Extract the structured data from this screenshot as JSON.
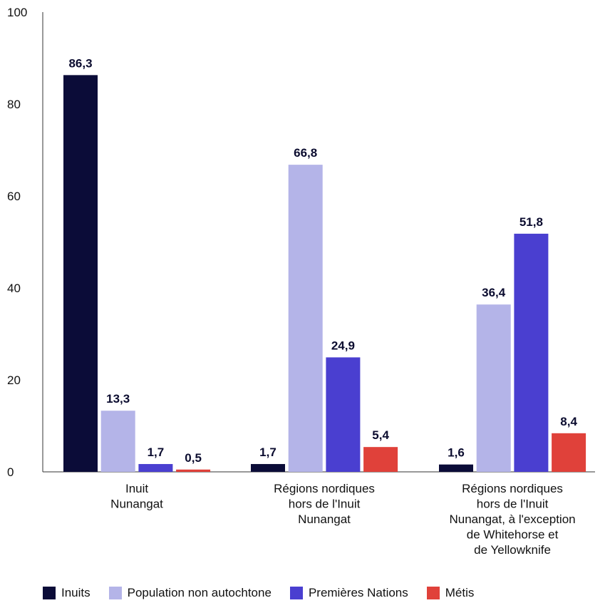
{
  "chart_data": {
    "type": "bar",
    "categories": [
      [
        "Inuit",
        "Nunangat"
      ],
      [
        "Régions nordiques",
        "hors de l'Inuit",
        "Nunangat"
      ],
      [
        "Régions nordiques",
        "hors de l'Inuit",
        "Nunangat, à l'exception",
        "de Whitehorse et",
        "de Yellowknife"
      ]
    ],
    "series": [
      {
        "name": "Inuits",
        "color": "#0b0c38",
        "values": [
          86.3,
          1.7,
          1.6
        ],
        "labels": [
          "86,3",
          "1,7",
          "1,6"
        ]
      },
      {
        "name": "Population non autochtone",
        "color": "#b4b4e8",
        "values": [
          13.3,
          66.8,
          36.4
        ],
        "labels": [
          "13,3",
          "66,8",
          "36,4"
        ]
      },
      {
        "name": "Premières Nations",
        "color": "#4a3fd0",
        "values": [
          1.7,
          24.9,
          51.8
        ],
        "labels": [
          "1,7",
          "24,9",
          "51,8"
        ]
      },
      {
        "name": "Métis",
        "color": "#e0413a",
        "values": [
          0.5,
          5.4,
          8.4
        ],
        "labels": [
          "0,5",
          "5,4",
          "8,4"
        ]
      }
    ],
    "ylim": [
      0,
      100
    ],
    "yticks": [
      "0",
      "20",
      "40",
      "60",
      "80",
      "100"
    ],
    "legend_position": "bottom",
    "grid": false
  }
}
